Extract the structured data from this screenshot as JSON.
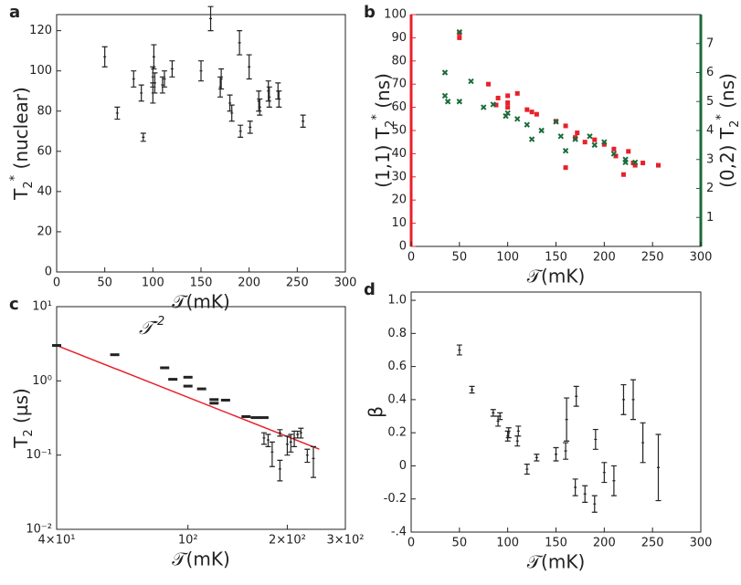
{
  "chart_data": [
    {
      "type": "scatter",
      "label": "a",
      "xlabel": "𝒯(mK)",
      "ylabel": {
        "text": "T",
        "sub": "2",
        "sup": "*",
        "unit": " (nuclear)"
      },
      "xlim": [
        0,
        300
      ],
      "xticks": [
        0,
        50,
        100,
        150,
        200,
        250,
        300
      ],
      "ylim": [
        0,
        128
      ],
      "yticks": [
        0,
        20,
        40,
        60,
        80,
        100,
        120
      ],
      "series": [
        {
          "marker": "errorbar",
          "color": "#222222",
          "x": [
            50,
            63,
            80,
            88,
            90,
            100,
            100,
            101,
            102,
            110,
            112,
            120,
            150,
            160,
            170,
            171,
            180,
            182,
            190,
            191,
            200,
            201,
            210,
            211,
            220,
            221,
            230,
            231,
            256
          ],
          "values": [
            107,
            79,
            96,
            89,
            67,
            89,
            97,
            107,
            94,
            93,
            96,
            101,
            100,
            126,
            92,
            96,
            84,
            79,
            114,
            70,
            102,
            72,
            85,
            82,
            90,
            87,
            90,
            86,
            75
          ],
          "errors": [
            5,
            3,
            4,
            4,
            2,
            5,
            5,
            6,
            5,
            4,
            4,
            4,
            5,
            6,
            5,
            5,
            4,
            4,
            6,
            3,
            6,
            3,
            5,
            4,
            5,
            5,
            4,
            4,
            3
          ]
        }
      ]
    },
    {
      "type": "scatter",
      "label": "b",
      "xlabel": "𝒯(mK)",
      "ylabel": {
        "text": "(1,1)  T",
        "sub": "2",
        "sup": "*",
        "unit": " (ns)"
      },
      "y2label": {
        "text": "(0,2)  T",
        "sub": "2",
        "sup": "*",
        "unit": " (ns)"
      },
      "ycolor": "#e8202a",
      "y2color": "#1a6b3a",
      "xlim": [
        0,
        300
      ],
      "xticks": [
        0,
        50,
        100,
        150,
        200,
        250,
        300
      ],
      "ylim": [
        0,
        100
      ],
      "yticks": [
        0,
        10,
        20,
        30,
        40,
        50,
        60,
        70,
        80,
        90,
        100
      ],
      "y2lim": [
        0,
        8
      ],
      "y2ticks": [
        1,
        2,
        3,
        4,
        5,
        6,
        7
      ],
      "series": [
        {
          "marker": "square",
          "color": "#e8202a",
          "x": [
            50,
            50,
            80,
            88,
            90,
            100,
            100,
            100,
            110,
            120,
            125,
            130,
            150,
            160,
            160,
            170,
            172,
            180,
            190,
            200,
            210,
            212,
            220,
            225,
            230,
            232,
            240,
            256
          ],
          "values": [
            92,
            90,
            70,
            61,
            64,
            62,
            65,
            60,
            66,
            59,
            58,
            57,
            54,
            34,
            52,
            47,
            49,
            45,
            46,
            44,
            42,
            39,
            31,
            41,
            36,
            35,
            36,
            35
          ]
        },
        {
          "marker": "cross",
          "color": "#1a6b3a",
          "axis": "y2",
          "x": [
            35,
            35,
            38,
            50,
            50,
            62,
            75,
            85,
            98,
            100,
            110,
            120,
            125,
            135,
            150,
            155,
            160,
            170,
            185,
            190,
            200,
            210,
            222,
            222,
            232
          ],
          "values": [
            6.0,
            5.2,
            5.0,
            7.4,
            5.0,
            5.7,
            4.8,
            4.9,
            4.5,
            4.6,
            4.4,
            4.2,
            3.7,
            4.0,
            4.3,
            3.8,
            3.3,
            3.7,
            3.8,
            3.5,
            3.6,
            3.2,
            2.9,
            3.0,
            2.9
          ]
        }
      ]
    },
    {
      "type": "scatter",
      "label": "c",
      "xscale": "log",
      "yscale": "log",
      "xlabel": "𝒯(mK)",
      "ylabel": {
        "text": "T",
        "sub": "2",
        "unit": " (µs)"
      },
      "annotation": {
        "text": "𝒯",
        "sup": "-2",
        "color": "#e8202a"
      },
      "xlim": [
        40,
        300
      ],
      "xticks": [
        {
          "value": 40,
          "label": "4×10¹"
        },
        {
          "value": 100,
          "label": "10²"
        },
        {
          "value": 200,
          "label": "2×10²"
        },
        {
          "value": 300,
          "label": "3×10²"
        }
      ],
      "ylim": [
        0.01,
        10
      ],
      "yticks": [
        {
          "value": 0.01,
          "label": "10⁻²"
        },
        {
          "value": 0.1,
          "label": "10⁻¹"
        },
        {
          "value": 1,
          "label": "10⁰"
        },
        {
          "value": 10,
          "label": "10¹"
        }
      ],
      "series": [
        {
          "marker": "fit",
          "color": "#e8202a",
          "x": [
            40,
            250
          ],
          "values": [
            3.0,
            0.12
          ]
        },
        {
          "marker": "dash",
          "color": "#222222",
          "x": [
            40,
            60,
            85,
            90,
            100,
            100,
            110,
            120,
            120,
            130,
            150,
            160,
            170,
            170,
            175,
            180,
            190,
            190,
            200,
            205,
            210,
            215,
            220,
            230,
            240
          ],
          "values": [
            3.0,
            2.25,
            1.5,
            1.05,
            0.85,
            1.12,
            0.78,
            0.5,
            0.56,
            0.55,
            0.33,
            0.32,
            0.32,
            0.17,
            0.16,
            0.11,
            0.065,
            0.2,
            0.14,
            0.15,
            0.17,
            0.19,
            0.2,
            0.1,
            0.09
          ],
          "errors": [
            null,
            null,
            null,
            null,
            null,
            null,
            null,
            null,
            null,
            null,
            null,
            null,
            null,
            0.03,
            0.03,
            0.04,
            0.02,
            0.02,
            0.04,
            0.04,
            0.04,
            0.02,
            0.03,
            0.02,
            0.04
          ]
        }
      ]
    },
    {
      "type": "scatter",
      "label": "d",
      "xlabel": "𝒯(mK)",
      "ylabel": {
        "text": "β"
      },
      "xlim": [
        0,
        300
      ],
      "xticks": [
        0,
        50,
        100,
        150,
        200,
        250,
        300
      ],
      "ylim": [
        -0.4,
        1.05
      ],
      "yticks": [
        {
          "value": -0.4,
          "label": "-.4"
        },
        -0.2,
        0,
        0.2,
        0.4,
        0.6,
        0.8,
        {
          "value": 1,
          "label": "1.0"
        }
      ],
      "series": [
        {
          "marker": "errorbar",
          "color": "#222222",
          "x": [
            50,
            63,
            85,
            90,
            92,
            100,
            101,
            110,
            111,
            120,
            130,
            150,
            160,
            161,
            170,
            171,
            180,
            190,
            191,
            200,
            210,
            220,
            230,
            240,
            256
          ],
          "values": [
            0.7,
            0.46,
            0.32,
            0.27,
            0.3,
            0.18,
            0.2,
            0.15,
            0.21,
            -0.02,
            0.05,
            0.07,
            0.09,
            0.28,
            -0.13,
            0.42,
            -0.17,
            -0.23,
            0.16,
            -0.04,
            -0.09,
            0.4,
            0.4,
            0.14,
            -0.01
          ],
          "errors": [
            0.03,
            0.02,
            0.02,
            0.03,
            0.02,
            0.03,
            0.03,
            0.03,
            0.03,
            0.03,
            0.02,
            0.04,
            0.05,
            0.13,
            0.05,
            0.06,
            0.05,
            0.05,
            0.06,
            0.06,
            0.09,
            0.09,
            0.12,
            0.12,
            0.2
          ]
        }
      ]
    }
  ]
}
